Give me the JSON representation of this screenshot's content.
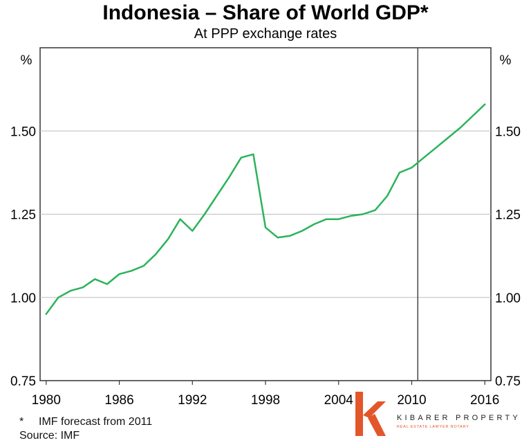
{
  "chart_data": {
    "type": "line",
    "title": "Indonesia – Share of World GDP*",
    "subtitle": "At PPP exchange rates",
    "ylabel_left": "%",
    "ylabel_right": "%",
    "xlim": [
      1979.5,
      2016.5
    ],
    "ylim": [
      0.75,
      1.75
    ],
    "x_ticks": [
      1980,
      1986,
      1992,
      1998,
      2004,
      2010,
      2016
    ],
    "x_tick_labels": [
      "1980",
      "1986",
      "1992",
      "1998",
      "2004",
      "2010",
      "2016"
    ],
    "y_ticks": [
      0.75,
      1.0,
      1.25,
      1.5
    ],
    "y_tick_labels": [
      "0.75",
      "1.00",
      "1.25",
      "1.50"
    ],
    "grid": "horizontal",
    "forecast_line_x": 2010.5,
    "series": [
      {
        "name": "Indonesia share of world GDP",
        "color": "#2bb35a",
        "x": [
          1980,
          1981,
          1982,
          1983,
          1984,
          1985,
          1986,
          1987,
          1988,
          1989,
          1990,
          1991,
          1992,
          1993,
          1994,
          1995,
          1996,
          1997,
          1998,
          1999,
          2000,
          2001,
          2002,
          2003,
          2004,
          2005,
          2006,
          2007,
          2008,
          2009,
          2010,
          2011,
          2012,
          2013,
          2014,
          2015,
          2016
        ],
        "values": [
          0.95,
          1.0,
          1.02,
          1.03,
          1.055,
          1.04,
          1.07,
          1.08,
          1.095,
          1.13,
          1.175,
          1.235,
          1.2,
          1.25,
          1.305,
          1.36,
          1.42,
          1.43,
          1.21,
          1.18,
          1.185,
          1.2,
          1.22,
          1.235,
          1.235,
          1.245,
          1.25,
          1.262,
          1.305,
          1.375,
          1.39,
          1.42,
          1.45,
          1.48,
          1.51,
          1.545,
          1.58
        ]
      }
    ]
  },
  "footnotes": {
    "forecast_marker": "*",
    "forecast_note": "IMF forecast from 2011",
    "source": "Source: IMF"
  },
  "watermark": {
    "letter": "K",
    "name": "KIBARER PROPERTY",
    "tagline": "REAL ESTATE  LAWYER  NOTARY",
    "accent_color": "#e2572a"
  }
}
